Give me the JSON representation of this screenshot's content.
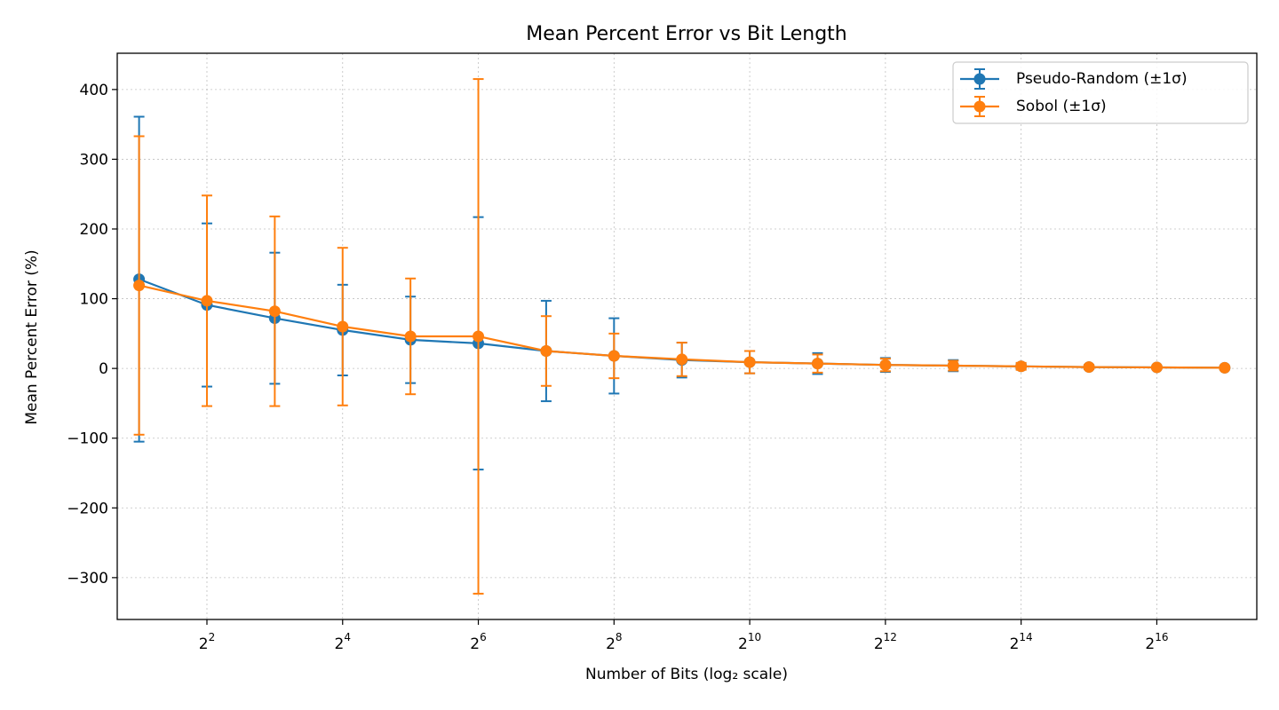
{
  "chart_data": {
    "type": "line",
    "title": "Mean Percent Error vs Bit Length",
    "xlabel": "Number of Bits (log₂ scale)",
    "ylabel": "Mean Percent Error (%)",
    "x_scale": "log2",
    "x": [
      2,
      4,
      8,
      16,
      32,
      64,
      128,
      256,
      512,
      1024,
      2048,
      4096,
      8192,
      16384,
      32768,
      65536,
      131072
    ],
    "xlim": [
      1.6,
      182000
    ],
    "ylim": [
      -360,
      452
    ],
    "x_ticks": [
      {
        "value": 4,
        "base": "2",
        "exp": "2"
      },
      {
        "value": 16,
        "base": "2",
        "exp": "4"
      },
      {
        "value": 64,
        "base": "2",
        "exp": "6"
      },
      {
        "value": 256,
        "base": "2",
        "exp": "8"
      },
      {
        "value": 1024,
        "base": "2",
        "exp": "10"
      },
      {
        "value": 4096,
        "base": "2",
        "exp": "12"
      },
      {
        "value": 16384,
        "base": "2",
        "exp": "14"
      },
      {
        "value": 65536,
        "base": "2",
        "exp": "16"
      }
    ],
    "y_ticks": [
      {
        "value": 400,
        "label": "400"
      },
      {
        "value": 300,
        "label": "300"
      },
      {
        "value": 200,
        "label": "200"
      },
      {
        "value": 100,
        "label": "100"
      },
      {
        "value": 0,
        "label": "0"
      },
      {
        "value": -100,
        "label": "−100"
      },
      {
        "value": -200,
        "label": "−200"
      },
      {
        "value": -300,
        "label": "−300"
      }
    ],
    "grid": true,
    "legend_position": "top-right",
    "series": [
      {
        "name": "Pseudo-Random (±1σ)",
        "color": "#1f77b4",
        "values": [
          128,
          91,
          72,
          55,
          41,
          36,
          25,
          18,
          12,
          9,
          7,
          5,
          4,
          3,
          2,
          1.5,
          1
        ],
        "errors": [
          233,
          117,
          94,
          65,
          62,
          181,
          72,
          54,
          25,
          16,
          15,
          10,
          8,
          4,
          3,
          2,
          1.5
        ]
      },
      {
        "name": "Sobol (±1σ)",
        "color": "#ff7f0e",
        "values": [
          119,
          97,
          82,
          60,
          46,
          46,
          25,
          18,
          13,
          9,
          7,
          5,
          4,
          3,
          2,
          1.5,
          1
        ],
        "errors": [
          214,
          151,
          136,
          113,
          83,
          369,
          50,
          32,
          24,
          16,
          13,
          9,
          7,
          5,
          3,
          2,
          1.5
        ]
      }
    ]
  }
}
